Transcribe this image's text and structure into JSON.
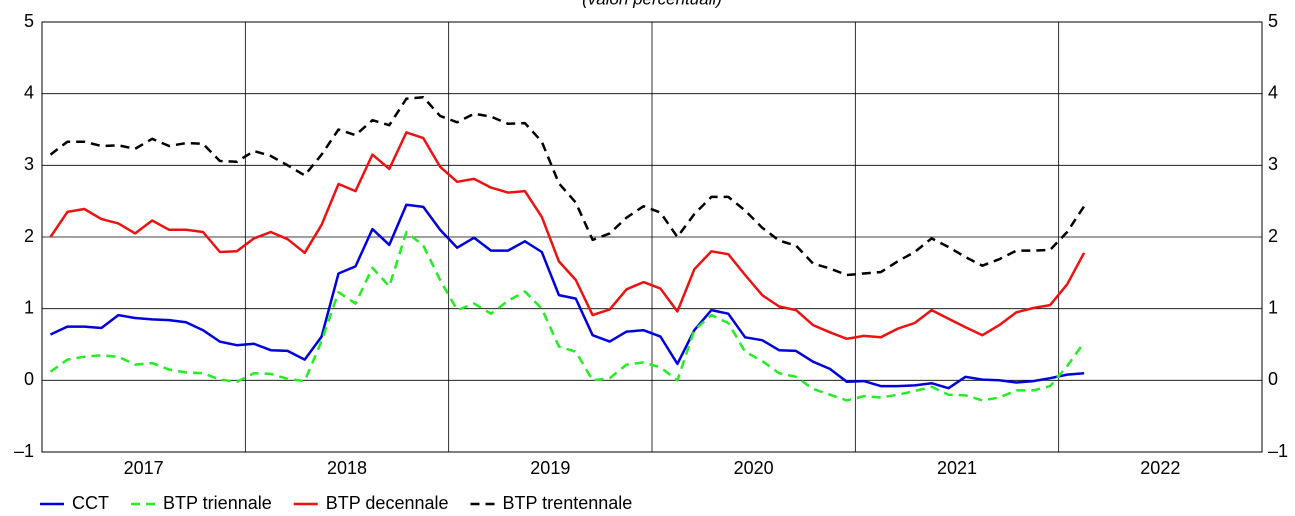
{
  "chart_data": {
    "type": "line",
    "title": "(valori percentuali)",
    "x": [
      2017.042,
      2017.125,
      2017.208,
      2017.292,
      2017.375,
      2017.458,
      2017.542,
      2017.625,
      2017.708,
      2017.792,
      2017.875,
      2017.958,
      2018.042,
      2018.125,
      2018.208,
      2018.292,
      2018.375,
      2018.458,
      2018.542,
      2018.625,
      2018.708,
      2018.792,
      2018.875,
      2018.958,
      2019.042,
      2019.125,
      2019.208,
      2019.292,
      2019.375,
      2019.458,
      2019.542,
      2019.625,
      2019.708,
      2019.792,
      2019.875,
      2019.958,
      2020.042,
      2020.125,
      2020.208,
      2020.292,
      2020.375,
      2020.458,
      2020.542,
      2020.625,
      2020.708,
      2020.792,
      2020.875,
      2020.958,
      2021.042,
      2021.125,
      2021.208,
      2021.292,
      2021.375,
      2021.458,
      2021.542,
      2021.625,
      2021.708,
      2021.792,
      2021.875,
      2021.958,
      2022.042,
      2022.125
    ],
    "series": [
      {
        "name": "CCT",
        "color": "#0000dd",
        "dashed": false,
        "values": [
          0.64,
          0.75,
          0.75,
          0.73,
          0.91,
          0.87,
          0.85,
          0.84,
          0.81,
          0.7,
          0.54,
          0.49,
          0.51,
          0.42,
          0.41,
          0.29,
          0.61,
          1.49,
          1.59,
          2.11,
          1.89,
          2.45,
          2.42,
          2.1,
          1.85,
          1.99,
          1.81,
          1.81,
          1.94,
          1.79,
          1.19,
          1.14,
          0.63,
          0.54,
          0.68,
          0.7,
          0.61,
          0.23,
          0.7,
          0.98,
          0.93,
          0.6,
          0.56,
          0.42,
          0.41,
          0.26,
          0.16,
          -0.02,
          -0.01,
          -0.08,
          -0.08,
          -0.07,
          -0.04,
          -0.11,
          0.05,
          0.01,
          0.0,
          -0.03,
          -0.01,
          0.03,
          0.08,
          0.1
        ]
      },
      {
        "name": "BTP triennale",
        "color": "#22ee22",
        "dashed": true,
        "values": [
          0.12,
          0.29,
          0.33,
          0.35,
          0.33,
          0.22,
          0.24,
          0.15,
          0.11,
          0.1,
          0.01,
          -0.02,
          0.1,
          0.09,
          0.02,
          -0.01,
          0.55,
          1.23,
          1.07,
          1.57,
          1.31,
          2.07,
          1.88,
          1.4,
          0.98,
          1.07,
          0.93,
          1.11,
          1.24,
          1.0,
          0.47,
          0.4,
          0.0,
          0.03,
          0.22,
          0.25,
          0.18,
          0.0,
          0.7,
          0.91,
          0.8,
          0.4,
          0.27,
          0.1,
          0.05,
          -0.12,
          -0.2,
          -0.28,
          -0.22,
          -0.24,
          -0.2,
          -0.15,
          -0.09,
          -0.2,
          -0.21,
          -0.28,
          -0.24,
          -0.14,
          -0.14,
          -0.08,
          0.2,
          0.53
        ]
      },
      {
        "name": "BTP decennale",
        "color": "#ee1111",
        "dashed": false,
        "values": [
          2.0,
          2.35,
          2.39,
          2.25,
          2.19,
          2.05,
          2.23,
          2.1,
          2.1,
          2.07,
          1.79,
          1.8,
          1.98,
          2.07,
          1.97,
          1.78,
          2.17,
          2.74,
          2.64,
          3.15,
          2.95,
          3.46,
          3.38,
          2.98,
          2.77,
          2.81,
          2.69,
          2.62,
          2.64,
          2.28,
          1.66,
          1.4,
          0.91,
          0.99,
          1.27,
          1.37,
          1.28,
          0.96,
          1.55,
          1.8,
          1.76,
          1.47,
          1.19,
          1.03,
          0.98,
          0.77,
          0.67,
          0.58,
          0.62,
          0.6,
          0.72,
          0.8,
          0.98,
          0.86,
          0.74,
          0.63,
          0.77,
          0.95,
          1.01,
          1.05,
          1.34,
          1.78
        ]
      },
      {
        "name": "BTP trentennale",
        "color": "#000000",
        "dashed": true,
        "values": [
          3.15,
          3.33,
          3.33,
          3.27,
          3.28,
          3.23,
          3.37,
          3.27,
          3.31,
          3.3,
          3.06,
          3.05,
          3.2,
          3.13,
          3.0,
          2.86,
          3.15,
          3.5,
          3.42,
          3.63,
          3.56,
          3.93,
          3.95,
          3.69,
          3.6,
          3.72,
          3.68,
          3.58,
          3.59,
          3.33,
          2.75,
          2.48,
          1.96,
          2.05,
          2.27,
          2.43,
          2.34,
          2.0,
          2.32,
          2.56,
          2.56,
          2.37,
          2.13,
          1.95,
          1.88,
          1.63,
          1.56,
          1.47,
          1.49,
          1.51,
          1.66,
          1.79,
          1.98,
          1.86,
          1.72,
          1.6,
          1.69,
          1.81,
          1.81,
          1.82,
          2.07,
          2.43
        ]
      }
    ],
    "xlim": [
      2017,
      2023
    ],
    "xticks": [
      2017,
      2018,
      2019,
      2020,
      2021,
      2022
    ],
    "ylim": [
      -1,
      5
    ],
    "yticks": [
      {
        "value": -1,
        "label": "–1"
      },
      0,
      1,
      2,
      3,
      4,
      5
    ],
    "grid": true,
    "legend": "bottom"
  }
}
